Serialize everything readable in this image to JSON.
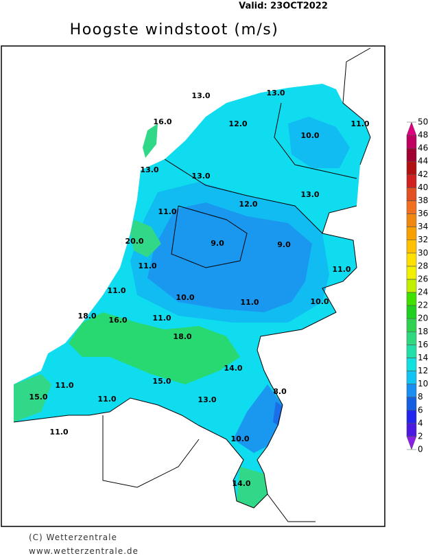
{
  "header": {
    "valid": "Valid:  23OCT2022",
    "title": "Hoogste windstoot (m/s)"
  },
  "map": {
    "labels": [
      "13.0",
      "13.0",
      "16.0",
      "12.0",
      "11.0",
      "10.0",
      "13.0",
      "13.0",
      "13.0",
      "12.0",
      "11.0",
      "20.0",
      "9.0",
      "9.0",
      "11.0",
      "11.0",
      "11.0",
      "10.0",
      "11.0",
      "10.0",
      "18.0",
      "16.0",
      "11.0",
      "18.0",
      "14.0",
      "15.0",
      "11.0",
      "8.0",
      "15.0",
      "11.0",
      "13.0",
      "10.0",
      "11.0",
      "14.0"
    ]
  },
  "colorbar": {
    "ticks": [
      0,
      2,
      4,
      6,
      8,
      10,
      12,
      14,
      16,
      18,
      20,
      22,
      24,
      26,
      28,
      30,
      32,
      34,
      36,
      38,
      40,
      42,
      44,
      46,
      48,
      50
    ],
    "colors": [
      "#8a20e8",
      "#4a18e0",
      "#2424f0",
      "#1460e0",
      "#1a8ef0",
      "#10c4f4",
      "#10e0e0",
      "#20e0a8",
      "#30d880",
      "#30d050",
      "#20d020",
      "#40e000",
      "#c0f000",
      "#f0f000",
      "#ffe000",
      "#ffc000",
      "#f8a000",
      "#f08810",
      "#f07020",
      "#e05020",
      "#d02020",
      "#b01010",
      "#a00030",
      "#c00060",
      "#e0007f"
    ]
  },
  "footer": {
    "copyright": "(C) Wetterzentrale",
    "url": "www.wetterzentrale.de"
  }
}
